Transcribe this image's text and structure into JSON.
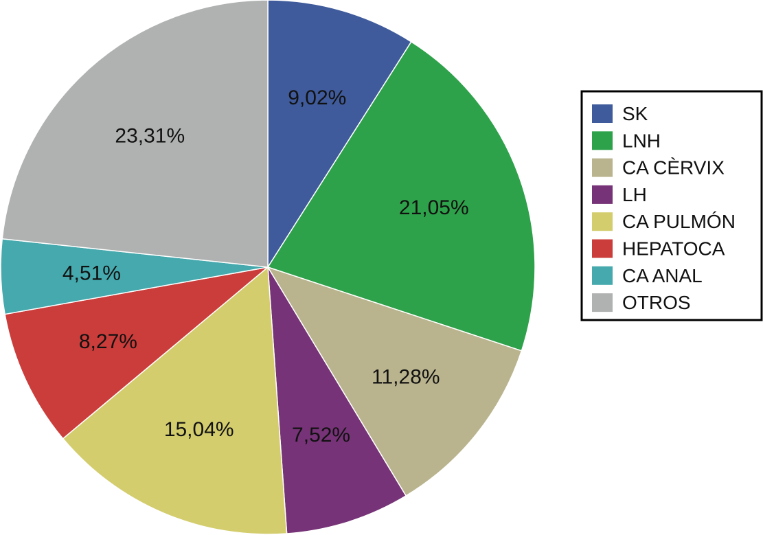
{
  "chart_data": {
    "type": "pie",
    "title": "",
    "start_angle_deg": 0,
    "direction": "clockwise",
    "legend_position": "right",
    "slices": [
      {
        "name": "SK",
        "value": 9.02,
        "label": "9,02%",
        "color": "#3f5b9b"
      },
      {
        "name": "LNH",
        "value": 21.05,
        "label": "21,05%",
        "color": "#2ea24a"
      },
      {
        "name": "CA CÈRVIX",
        "value": 11.28,
        "label": "11,28%",
        "color": "#b9b48e"
      },
      {
        "name": "LH",
        "value": 7.52,
        "label": "7,52%",
        "color": "#763377"
      },
      {
        "name": "CA PULMÓN",
        "value": 15.04,
        "label": "15,04%",
        "color": "#d3cd6e"
      },
      {
        "name": "HEPATOCA",
        "value": 8.27,
        "label": "8,27%",
        "color": "#cb3d3b"
      },
      {
        "name": "CA ANAL",
        "value": 4.51,
        "label": "4,51%",
        "color": "#45a9ad"
      },
      {
        "name": "OTROS",
        "value": 23.31,
        "label": "23,31%",
        "color": "#b0b1b1"
      }
    ]
  }
}
